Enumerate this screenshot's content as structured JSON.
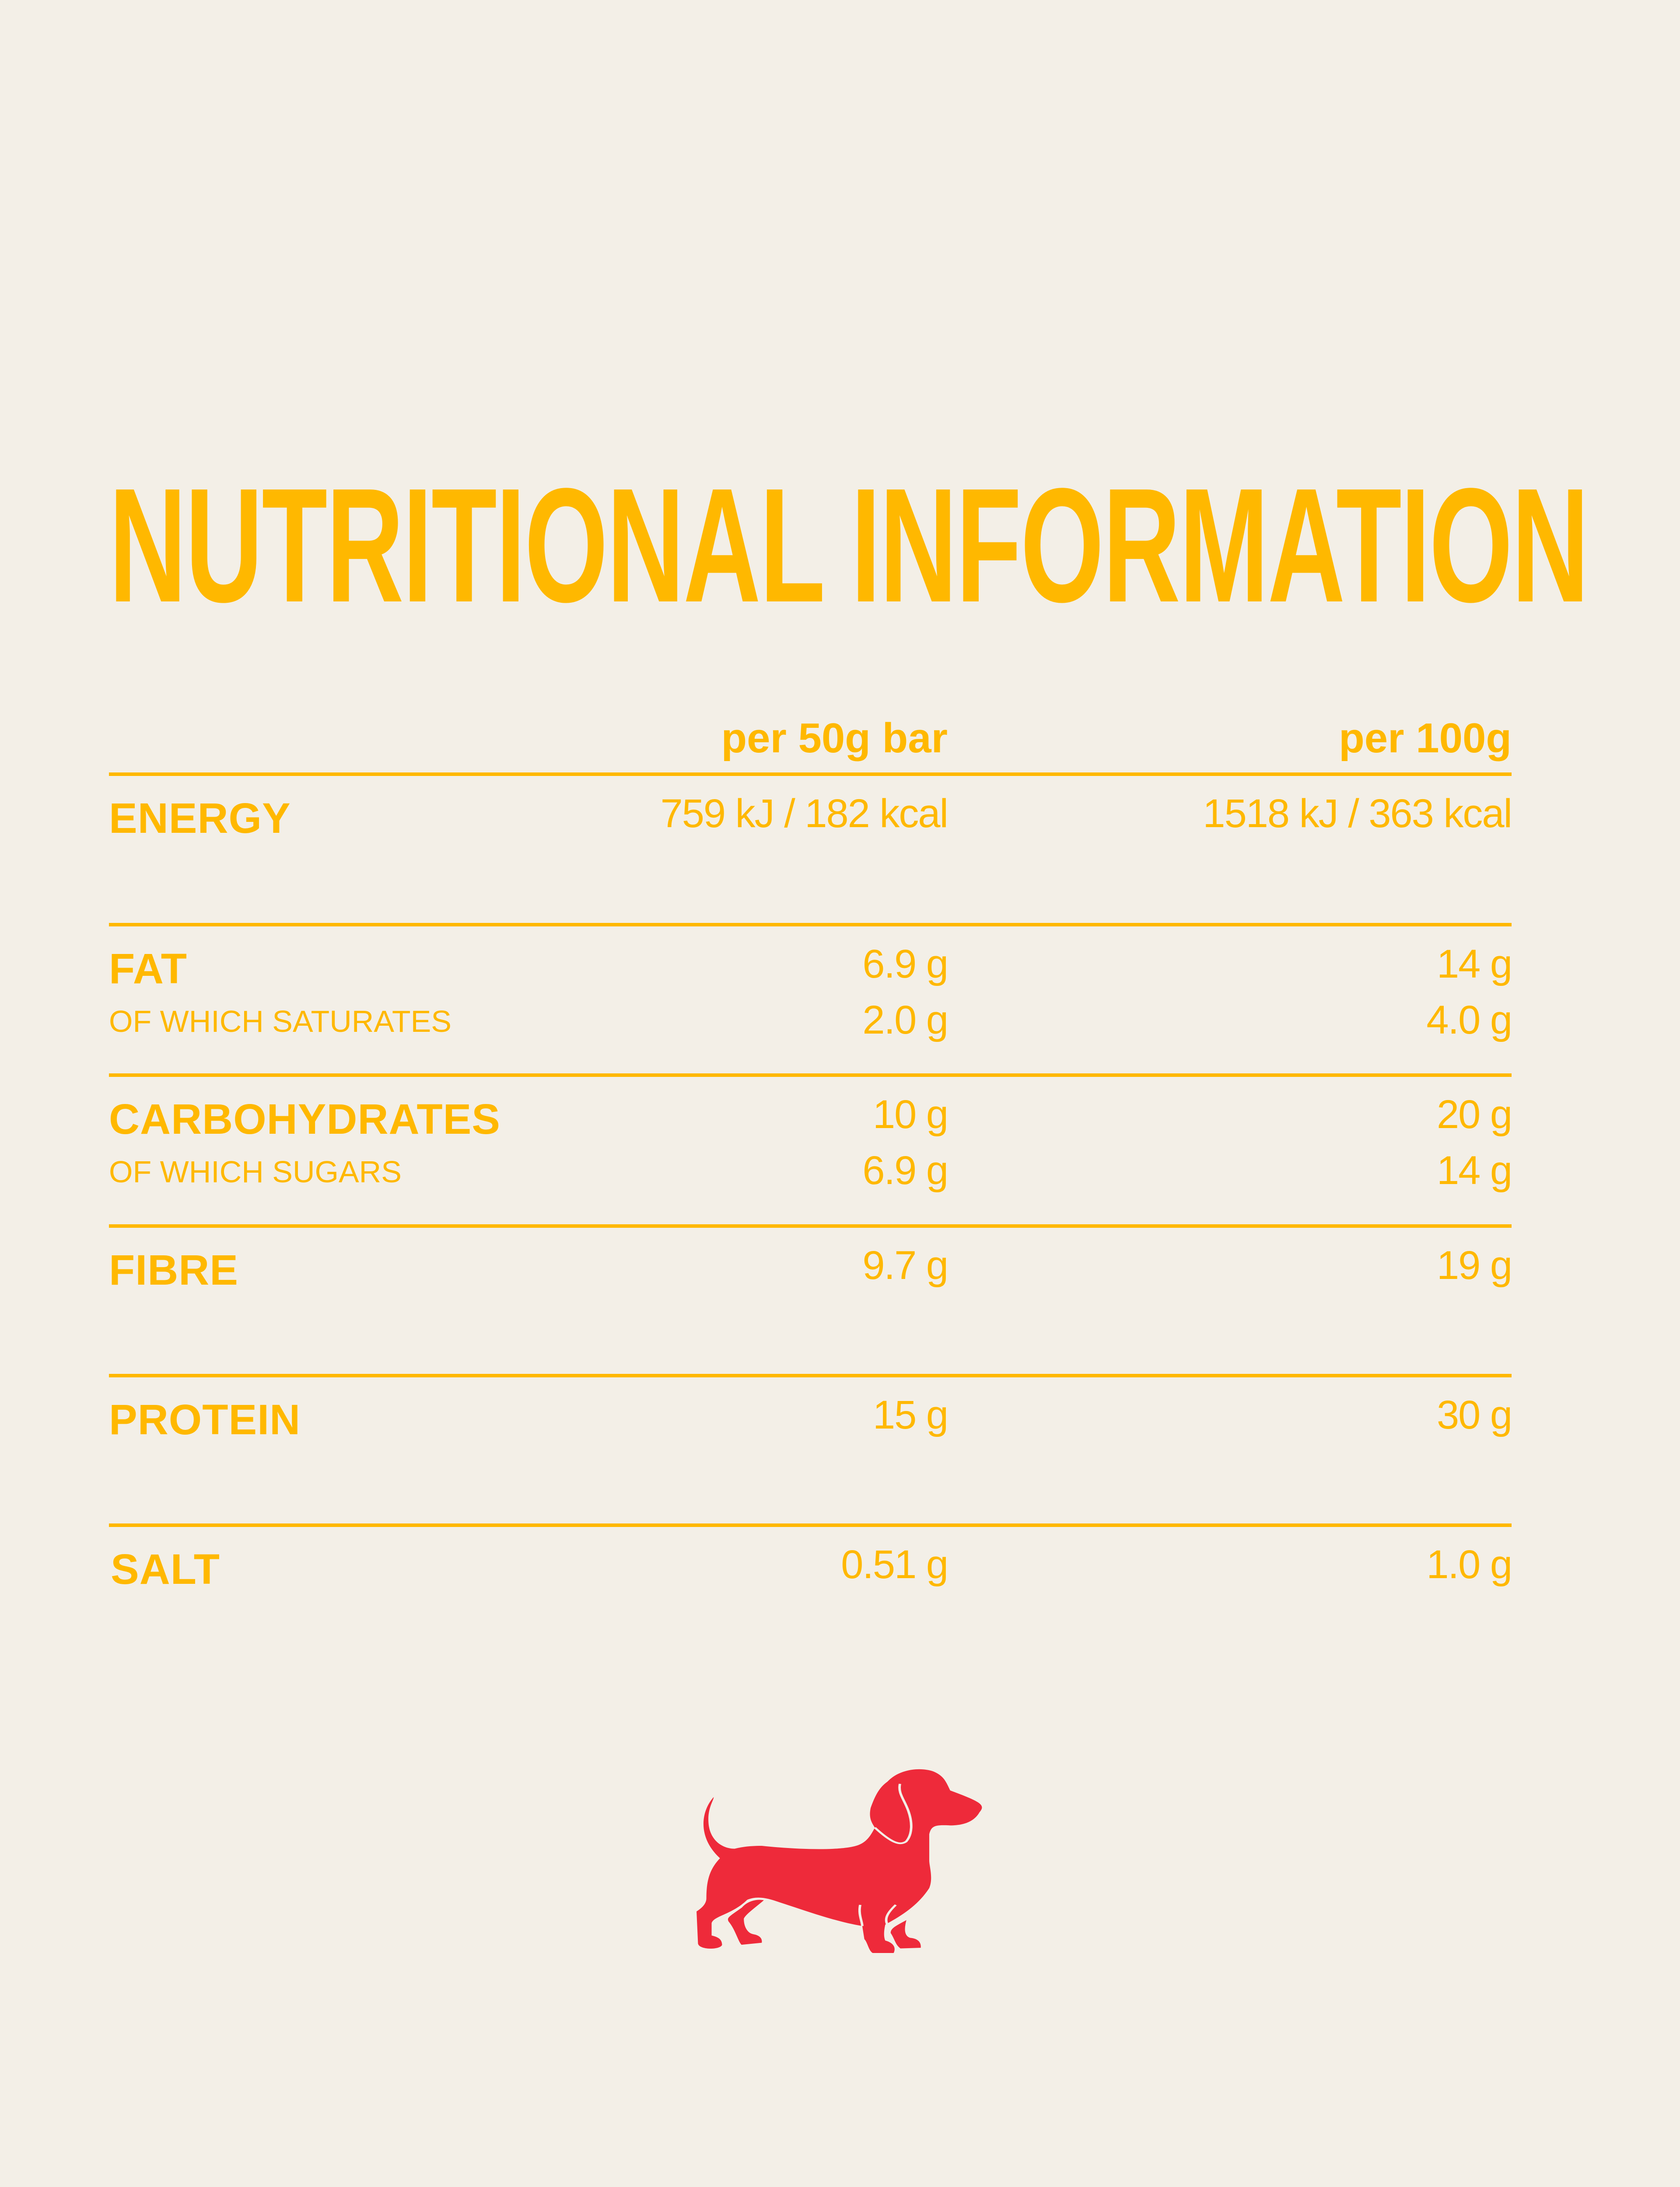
{
  "title": "NUTRITIONAL INFORMATION",
  "columns": {
    "per_bar": "per 50g bar",
    "per_100g": "per 100g"
  },
  "rows": [
    {
      "label": "ENERGY",
      "per_bar": "759 kJ / 182 kcal",
      "per_100g": "1518 kJ / 363 kcal"
    },
    {
      "label": "FAT",
      "per_bar": "6.9 g",
      "per_100g": "14 g",
      "sub": {
        "label": "OF WHICH SATURATES",
        "per_bar": "2.0 g",
        "per_100g": "4.0 g"
      }
    },
    {
      "label": "CARBOHYDRATES",
      "per_bar": "10 g",
      "per_100g": "20 g",
      "sub": {
        "label": "OF WHICH SUGARS",
        "per_bar": "6.9 g",
        "per_100g": "14 g"
      }
    },
    {
      "label": "FIBRE",
      "per_bar": "9.7 g",
      "per_100g": "19 g"
    },
    {
      "label": "PROTEIN",
      "per_bar": "15 g",
      "per_100g": "30 g"
    },
    {
      "label": "SALT",
      "per_bar": "0.51 g",
      "per_100g": "1.0 g"
    }
  ],
  "logo": {
    "icon": "dachshund-icon",
    "color": "#EE2A3A"
  },
  "colors": {
    "accent": "#FFB800",
    "background": "#F3EFE7"
  }
}
